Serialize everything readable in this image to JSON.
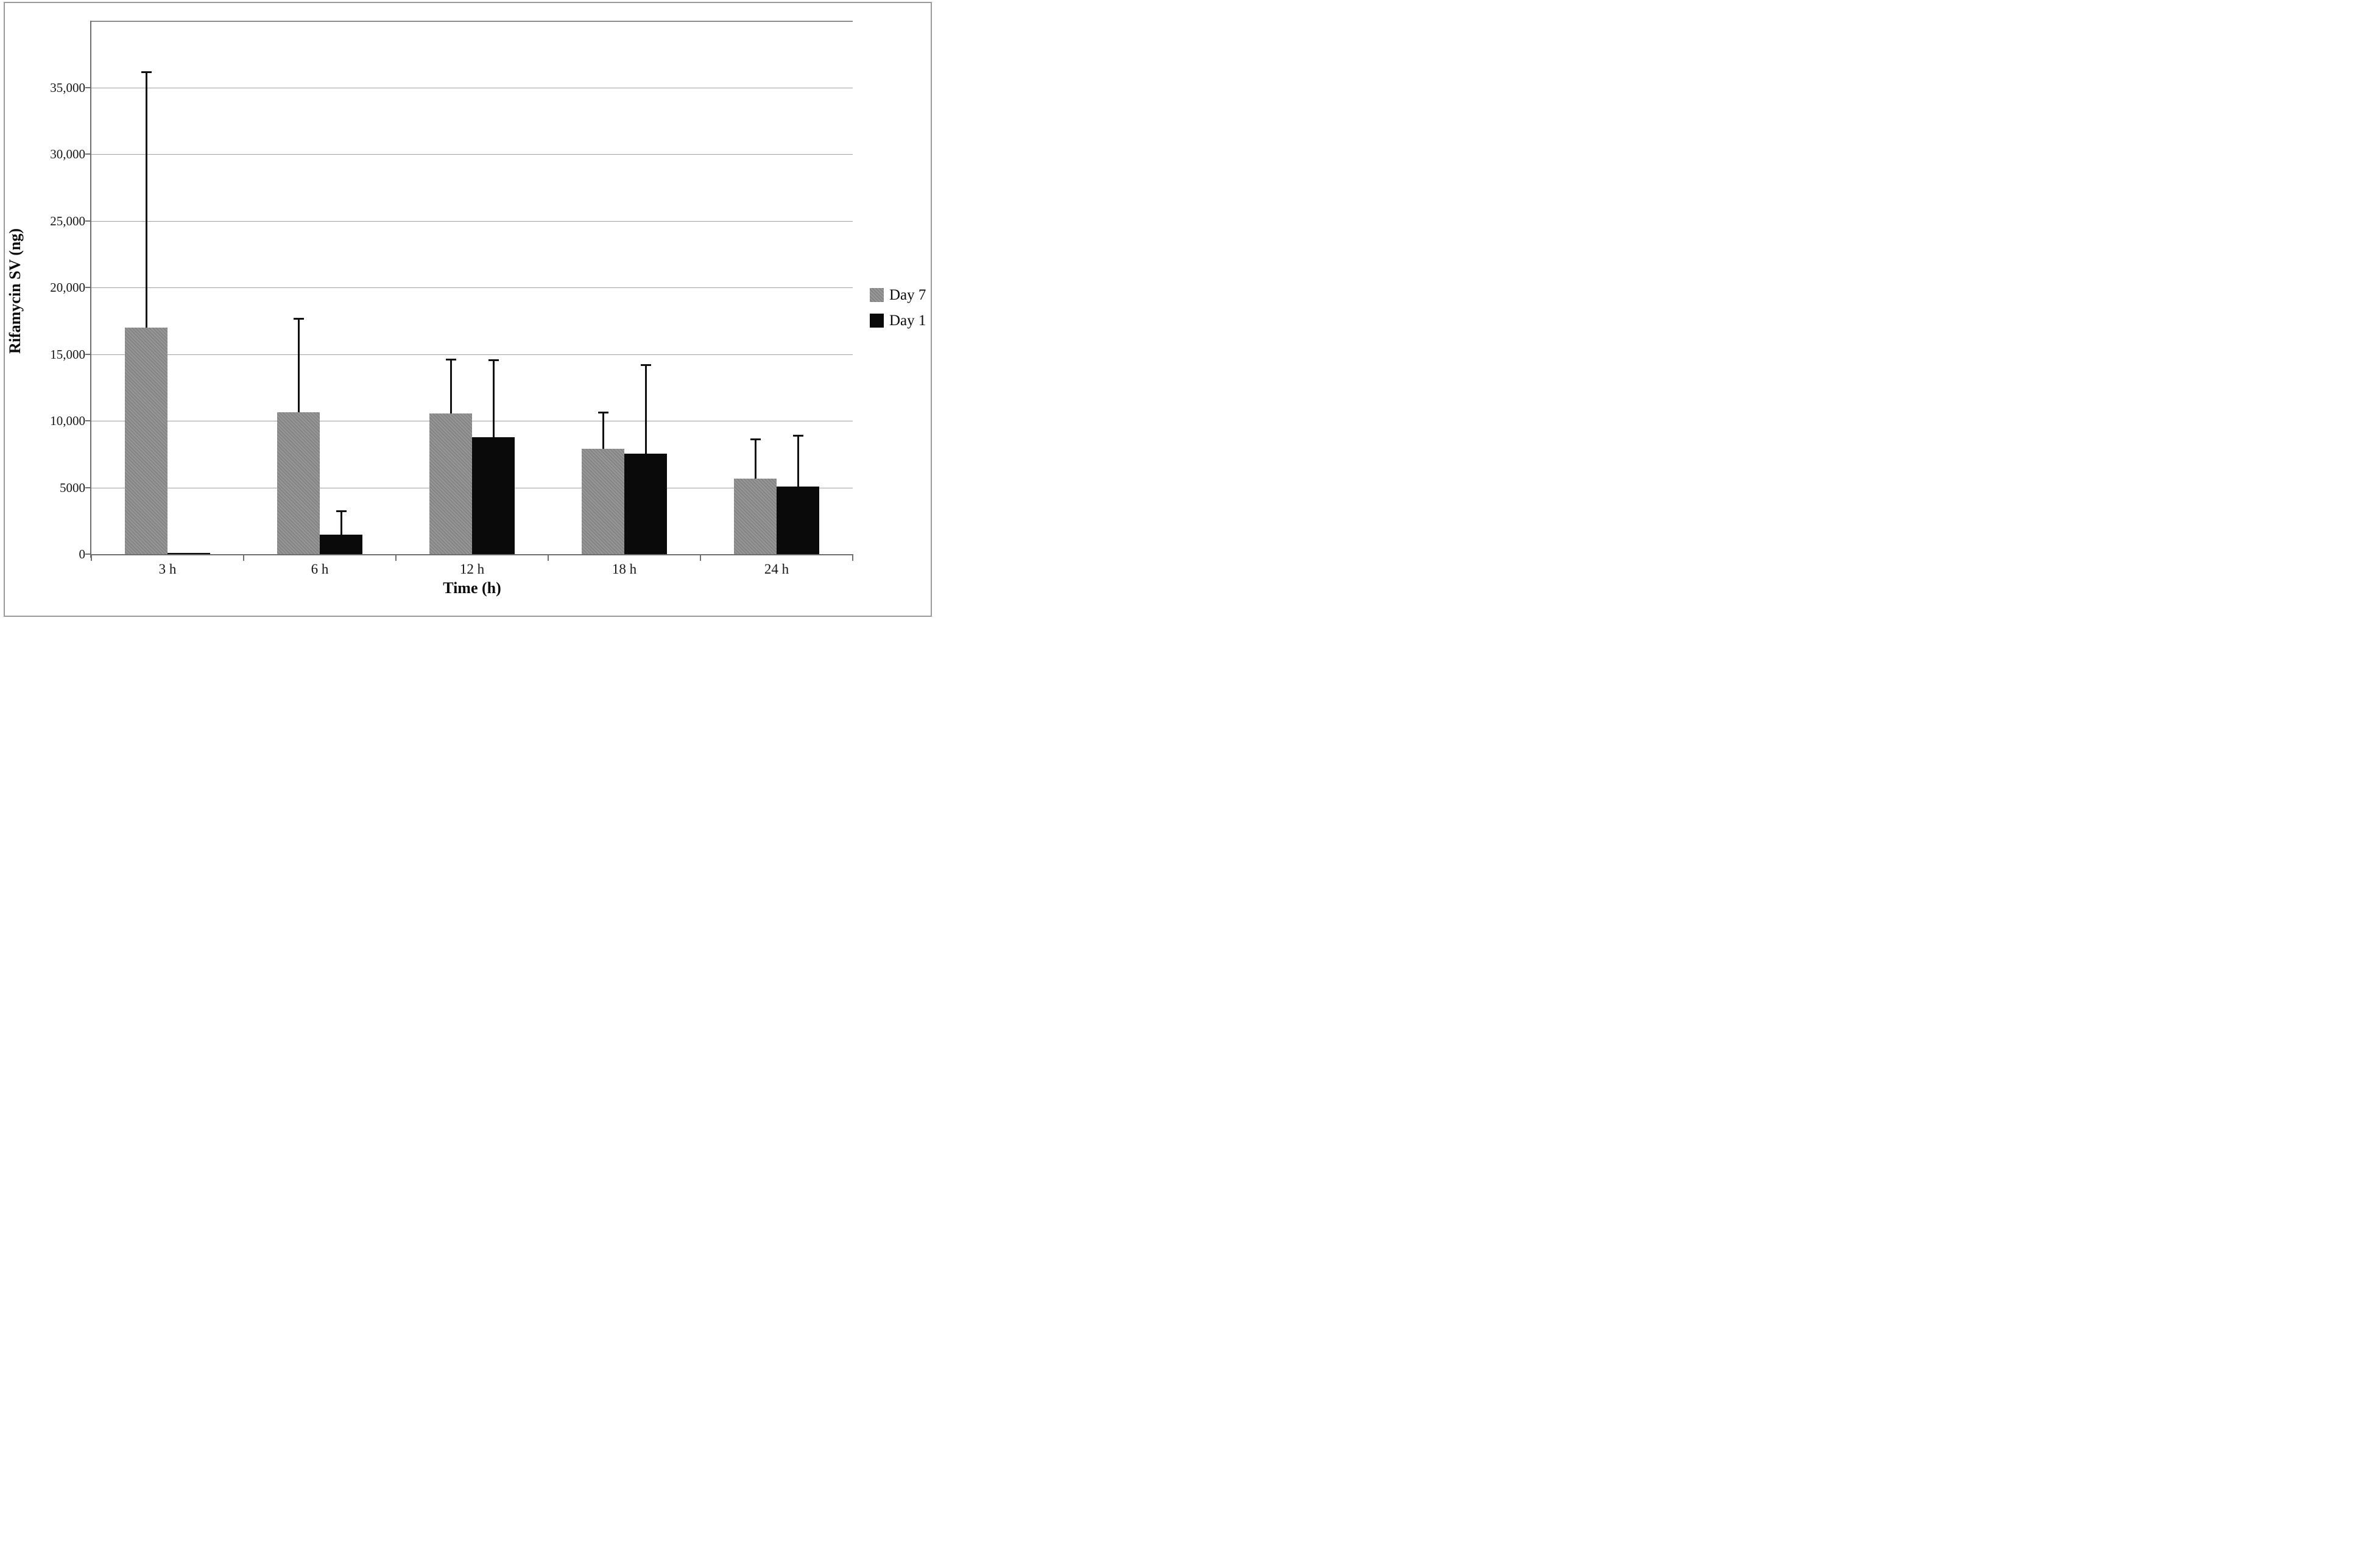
{
  "chart_data": {
    "type": "bar",
    "title": "",
    "xlabel": "Time (h)",
    "ylabel": "Rifamycin SV (ng)",
    "categories": [
      "3 h",
      "6 h",
      "12 h",
      "18 h",
      "24 h"
    ],
    "series": [
      {
        "name": "Day 7",
        "color": "#8b8b8b",
        "values": [
          17000,
          10650,
          10550,
          7880,
          5680
        ],
        "error_bar_tops": [
          36150,
          17650,
          14600,
          10640,
          8650
        ]
      },
      {
        "name": "Day 1",
        "color": "#0a0a0a",
        "values": [
          80,
          1475,
          8780,
          7540,
          5050
        ],
        "error_bar_tops": [
          null,
          3225,
          14550,
          14180,
          8890
        ]
      }
    ],
    "ylim": [
      0,
      40000
    ],
    "ytick_step": 5000,
    "ytick_labels": [
      "0",
      "5000",
      "10,000",
      "15,000",
      "20,000",
      "25,000",
      "30,000",
      "35,000"
    ],
    "grid": "horizontal",
    "legend_position": "right",
    "error_bars": "upper only",
    "colors": {
      "gridline": "#a0a0a0",
      "axis": "#6e6e6e",
      "figure_border": "#9a9a9a",
      "text": "#151515",
      "background": "#ffffff"
    }
  }
}
